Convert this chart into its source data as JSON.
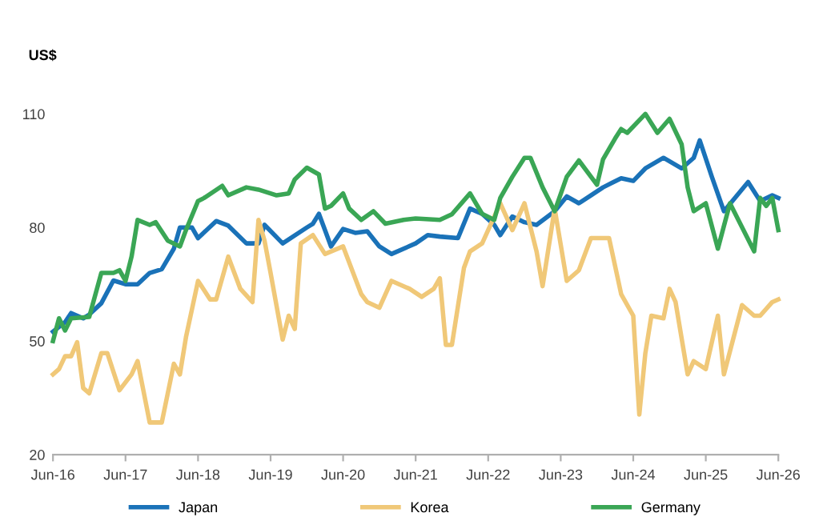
{
  "chart_data": {
    "type": "line",
    "ylabel": "US$",
    "ylim": [
      20,
      110
    ],
    "yticks": [
      20,
      50,
      80,
      110
    ],
    "xlim": [
      "2016-06",
      "2026-06"
    ],
    "xticks": [
      {
        "value": "2016-06",
        "label": "Jun-16"
      },
      {
        "value": "2017-06",
        "label": "Jun-17"
      },
      {
        "value": "2018-06",
        "label": "Jun-18"
      },
      {
        "value": "2019-06",
        "label": "Jun-19"
      },
      {
        "value": "2020-06",
        "label": "Jun-20"
      },
      {
        "value": "2021-06",
        "label": "Jun-21"
      },
      {
        "value": "2022-06",
        "label": "Jun-22"
      },
      {
        "value": "2023-06",
        "label": "Jun-23"
      },
      {
        "value": "2024-06",
        "label": "Jun-24"
      },
      {
        "value": "2025-06",
        "label": "Jun-25"
      },
      {
        "value": "2026-06",
        "label": "Jun-26"
      }
    ],
    "grid": false,
    "legend": "bottom",
    "marker": "none",
    "line_style": "solid",
    "series": [
      {
        "name": "Japan",
        "color": "#1a72b8",
        "x": [
          "2016-06",
          "2016-08",
          "2016-09",
          "2016-11",
          "2016-12",
          "2017-02",
          "2017-04",
          "2017-06",
          "2017-08",
          "2017-10",
          "2017-12",
          "2018-02",
          "2018-03",
          "2018-05",
          "2018-06",
          "2018-09",
          "2018-11",
          "2019-02",
          "2019-04",
          "2019-05",
          "2019-08",
          "2019-12",
          "2020-01",
          "2020-02",
          "2020-03",
          "2020-04",
          "2020-06",
          "2020-08",
          "2020-10",
          "2020-12",
          "2021-02",
          "2021-06",
          "2021-08",
          "2021-10",
          "2022-01",
          "2022-03",
          "2022-05",
          "2022-07",
          "2022-08",
          "2022-10",
          "2022-12",
          "2023-02",
          "2023-05",
          "2023-07",
          "2023-09",
          "2023-11",
          "2024-01",
          "2024-04",
          "2024-06",
          "2024-08",
          "2024-11",
          "2025-02",
          "2025-04",
          "2025-05",
          "2025-07",
          "2025-09",
          "2026-01",
          "2026-03",
          "2026-05",
          "2026-06"
        ],
        "values": [
          52.5,
          55,
          57.4,
          56,
          57,
          60,
          66,
          65,
          65,
          68,
          69,
          74.4,
          80,
          80,
          77.2,
          81.7,
          80.5,
          75.8,
          75.8,
          80.7,
          75.8,
          80,
          81,
          83.6,
          79.3,
          75,
          79.6,
          78.6,
          79,
          75,
          73,
          75.8,
          78,
          77.6,
          77.2,
          85,
          83.6,
          80.7,
          78,
          82.9,
          81.4,
          80.7,
          84.3,
          88.2,
          86.4,
          88.5,
          90.6,
          93,
          92.3,
          95.6,
          98.4,
          95.6,
          98.4,
          103,
          93.4,
          84.3,
          92,
          87,
          88.5,
          87.8
        ]
      },
      {
        "name": "Korea",
        "color": "#f0c878",
        "x": [
          "2016-06",
          "2016-07",
          "2016-08",
          "2016-09",
          "2016-10",
          "2016-11",
          "2016-12",
          "2017-02",
          "2017-03",
          "2017-05",
          "2017-07",
          "2017-08",
          "2017-10",
          "2017-12",
          "2018-02",
          "2018-03",
          "2018-04",
          "2018-06",
          "2018-08",
          "2018-09",
          "2018-11",
          "2019-01",
          "2019-03",
          "2019-04",
          "2019-05",
          "2019-06",
          "2019-08",
          "2019-09",
          "2019-10",
          "2019-11",
          "2020-01",
          "2020-03",
          "2020-06",
          "2020-08",
          "2020-09",
          "2020-10",
          "2020-12",
          "2021-02",
          "2021-05",
          "2021-07",
          "2021-09",
          "2021-10",
          "2021-11",
          "2021-12",
          "2022-02",
          "2022-03",
          "2022-05",
          "2022-08",
          "2022-10",
          "2022-12",
          "2023-02",
          "2023-03",
          "2023-05",
          "2023-07",
          "2023-09",
          "2023-11",
          "2024-02",
          "2024-04",
          "2024-06",
          "2024-07",
          "2024-08",
          "2024-09",
          "2024-11",
          "2024-12",
          "2025-01",
          "2025-03",
          "2025-04",
          "2025-06",
          "2025-08",
          "2025-09",
          "2025-12",
          "2026-02",
          "2026-03",
          "2026-05",
          "2026-06"
        ],
        "values": [
          41.2,
          42.6,
          46,
          46,
          49.7,
          37.6,
          36.2,
          46.8,
          46.8,
          37,
          41.2,
          44.7,
          28.5,
          28.5,
          44,
          41.2,
          51,
          65.9,
          61,
          61,
          72.3,
          63.8,
          60.3,
          82,
          76.5,
          68,
          50.4,
          56.7,
          53.2,
          75.8,
          78,
          73,
          75,
          66.6,
          62.4,
          60.3,
          58.8,
          65.9,
          63.8,
          61.7,
          63.8,
          66.6,
          49,
          49,
          69.4,
          73.7,
          75.8,
          86.4,
          79.3,
          86.4,
          73.7,
          64.5,
          85,
          65.9,
          68.7,
          77.2,
          77.2,
          62.4,
          56.7,
          30.6,
          46.8,
          56.7,
          56,
          63.8,
          60.3,
          41.2,
          44.7,
          42.6,
          56.7,
          41.2,
          59.5,
          56.7,
          56.7,
          60.3,
          61
        ]
      },
      {
        "name": "Germany",
        "color": "#3aa655",
        "x": [
          "2016-06",
          "2016-07",
          "2016-08",
          "2016-09",
          "2016-12",
          "2017-02",
          "2017-04",
          "2017-05",
          "2017-06",
          "2017-07",
          "2017-08",
          "2017-10",
          "2017-11",
          "2018-01",
          "2018-03",
          "2018-04",
          "2018-06",
          "2018-07",
          "2018-10",
          "2018-11",
          "2019-02",
          "2019-04",
          "2019-07",
          "2019-09",
          "2019-10",
          "2019-12",
          "2020-02",
          "2020-03",
          "2020-04",
          "2020-06",
          "2020-07",
          "2020-09",
          "2020-11",
          "2021-01",
          "2021-04",
          "2021-06",
          "2021-10",
          "2021-12",
          "2022-03",
          "2022-05",
          "2022-07",
          "2022-08",
          "2022-10",
          "2022-12",
          "2023-01",
          "2023-03",
          "2023-05",
          "2023-07",
          "2023-09",
          "2023-12",
          "2024-01",
          "2024-03",
          "2024-04",
          "2024-05",
          "2024-08",
          "2024-10",
          "2024-12",
          "2025-02",
          "2025-03",
          "2025-04",
          "2025-06",
          "2025-08",
          "2025-10",
          "2026-02",
          "2026-03",
          "2026-04",
          "2026-05",
          "2026-06"
        ],
        "values": [
          50,
          56,
          52.8,
          56,
          56.4,
          68,
          68,
          68.7,
          65.9,
          72.3,
          82,
          80.7,
          81.4,
          76.5,
          75,
          79.3,
          87,
          87.8,
          91,
          88.5,
          90.6,
          90,
          88.5,
          89,
          92.7,
          95.8,
          94,
          85,
          85.7,
          89,
          85,
          82,
          84.3,
          81,
          82,
          82.4,
          82,
          83.5,
          89,
          83.6,
          82,
          87.8,
          93.4,
          98.4,
          98.4,
          90.6,
          84.3,
          93.4,
          97.7,
          91.3,
          98,
          103.5,
          106,
          105,
          110,
          105,
          108.7,
          102,
          90.6,
          84.3,
          86.4,
          74.4,
          86.4,
          73.7,
          87.8,
          85.7,
          87.8,
          79.3
        ]
      }
    ]
  }
}
